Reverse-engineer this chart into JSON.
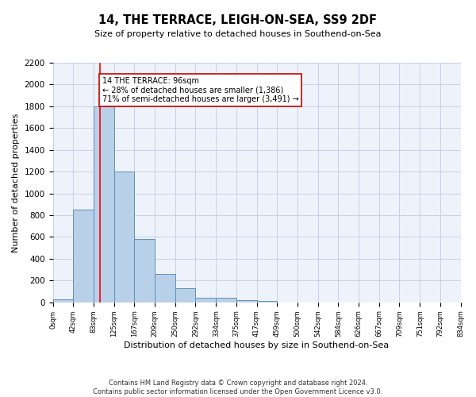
{
  "title": "14, THE TERRACE, LEIGH-ON-SEA, SS9 2DF",
  "subtitle": "Size of property relative to detached houses in Southend-on-Sea",
  "xlabel": "Distribution of detached houses by size in Southend-on-Sea",
  "ylabel": "Number of detached properties",
  "bar_color": "#b8d0e8",
  "bar_edge_color": "#6090b8",
  "background_color": "#eef2fa",
  "grid_color": "#c8d0e8",
  "annotation_box_color": "#cc0000",
  "annotation_text": "14 THE TERRACE: 96sqm\n← 28% of detached houses are smaller (1,386)\n71% of semi-detached houses are larger (3,491) →",
  "red_line_x": 96,
  "bin_edges": [
    0,
    42,
    83,
    125,
    167,
    209,
    250,
    292,
    334,
    375,
    417,
    459,
    500,
    542,
    584,
    626,
    667,
    709,
    751,
    792,
    834
  ],
  "bar_heights": [
    25,
    850,
    1800,
    1200,
    580,
    260,
    130,
    45,
    45,
    20,
    15,
    0,
    0,
    0,
    0,
    0,
    0,
    0,
    0,
    0
  ],
  "tick_labels": [
    "0sqm",
    "42sqm",
    "83sqm",
    "125sqm",
    "167sqm",
    "209sqm",
    "250sqm",
    "292sqm",
    "334sqm",
    "375sqm",
    "417sqm",
    "459sqm",
    "500sqm",
    "542sqm",
    "584sqm",
    "626sqm",
    "667sqm",
    "709sqm",
    "751sqm",
    "792sqm",
    "834sqm"
  ],
  "ylim": [
    0,
    2200
  ],
  "yticks": [
    0,
    200,
    400,
    600,
    800,
    1000,
    1200,
    1400,
    1600,
    1800,
    2000,
    2200
  ],
  "footnote": "Contains HM Land Registry data © Crown copyright and database right 2024.\nContains public sector information licensed under the Open Government Licence v3.0.",
  "figsize": [
    6.0,
    5.0
  ],
  "dpi": 100
}
